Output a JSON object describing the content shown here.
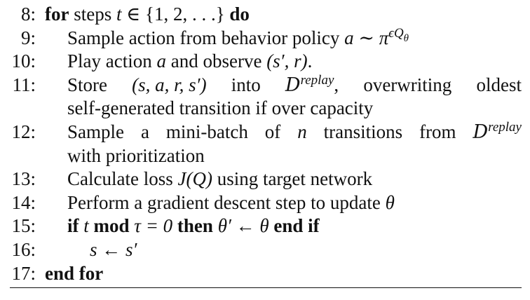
{
  "lines": [
    {
      "num": "8:",
      "kw1": "for",
      "pre": " steps ",
      "m1": "t",
      "rest": " ∈ {1, 2, . . .} ",
      "kw2": "do"
    },
    {
      "num": "9:",
      "pre": "Sample action from behavior policy ",
      "m1": "a",
      "mid": " ∼ ",
      "m2": "π",
      "sup": "ϵQ",
      "sub": "θ"
    },
    {
      "num": "10:",
      "pre": "Play action ",
      "m1": "a",
      "mid": " and observe ",
      "m2": "(s′, r)",
      "post": "."
    },
    {
      "num": "11:",
      "w1": "Store",
      "w2": "(s, a, r, s′)",
      "w3": "into",
      "cal": "D",
      "sup": "replay",
      "w4": ",",
      "w5": "overwriting",
      "w6": "oldest"
    },
    {
      "num": "",
      "text": "self-generated transition if over capacity"
    },
    {
      "num": "12:",
      "w1": "Sample",
      "w2": "a",
      "w3": "mini-batch",
      "w4": "of",
      "m1": "n",
      "w5": "transitions",
      "w6": "from",
      "cal": "D",
      "sup": "replay"
    },
    {
      "num": "",
      "text": "with prioritization"
    },
    {
      "num": "13:",
      "pre": "Calculate loss ",
      "m1": "J(Q)",
      "post": " using target network"
    },
    {
      "num": "14:",
      "pre": "Perform a gradient descent step to update ",
      "m1": "θ"
    },
    {
      "num": "15:",
      "kw1": "if",
      "m1": "t",
      "mod": "mod",
      "m2": "τ = 0",
      "kw2": "then",
      "m3": "θ′ ← θ",
      "kw3": "end if"
    },
    {
      "num": "16:",
      "m1": "s ← s′"
    },
    {
      "num": "17:",
      "kw1": "end for"
    }
  ]
}
